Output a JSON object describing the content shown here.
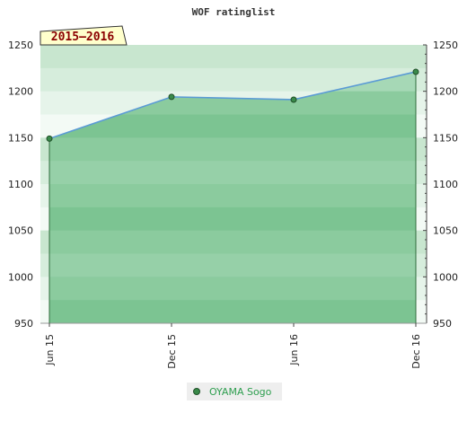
{
  "title": "WOF ratinglist",
  "badge": "2015–2016",
  "colors": {
    "series": "#3a8a4a",
    "line": "#5b9bd5",
    "badge_bg": "#ffffcc",
    "legend_text": "#2e9e4f",
    "legend_bg": "#eeeeee"
  },
  "chart_data": {
    "type": "area",
    "title": "WOF ratinglist",
    "xlabel": "",
    "ylabel": "",
    "ylim": [
      950,
      1250
    ],
    "yticks": [
      "950",
      "1000",
      "1050",
      "1100",
      "1150",
      "1200",
      "1250"
    ],
    "yaxis": "both",
    "grid": true,
    "legend": "bottom-center",
    "categories": [
      "Jun 15",
      "Dec 15",
      "Jun 16",
      "Dec 16"
    ],
    "series": [
      {
        "name": "OYAMA Sogo",
        "values": [
          1149,
          1194,
          1191,
          1221
        ]
      }
    ]
  }
}
